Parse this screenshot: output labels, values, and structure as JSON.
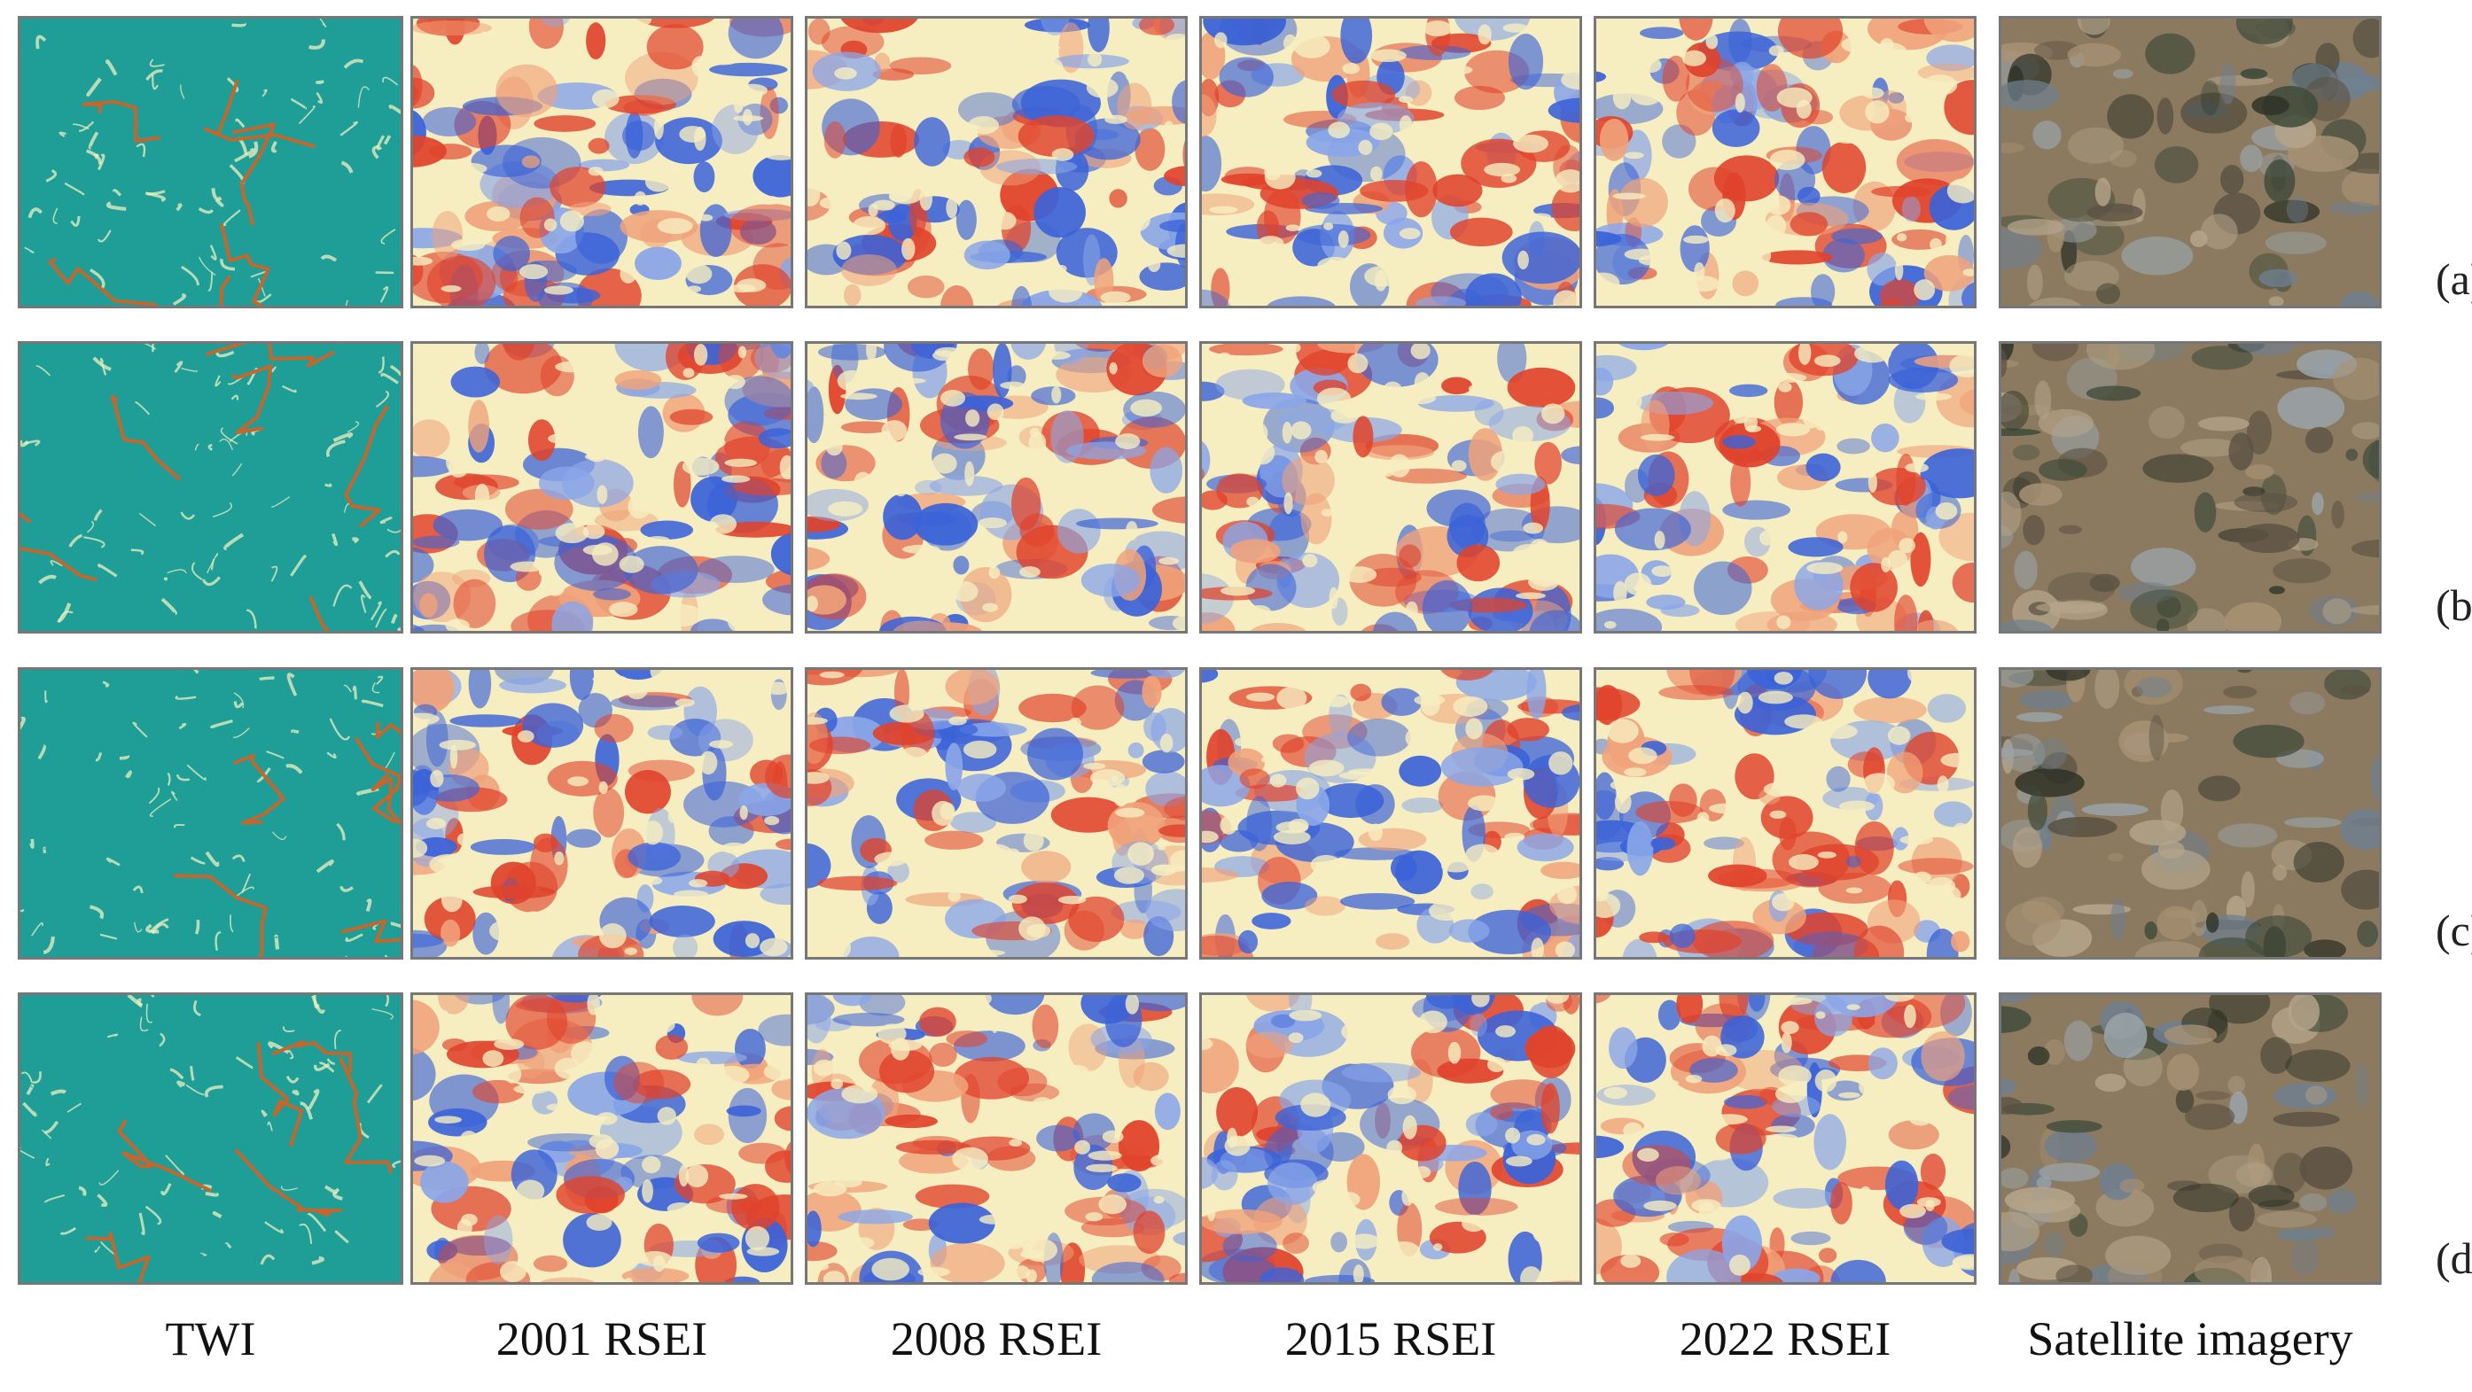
{
  "figure": {
    "column_labels": [
      "TWI",
      "2001 RSEI",
      "2008 RSEI",
      "2015 RSEI",
      "2022 RSEI",
      "Satellite imagery"
    ],
    "row_labels": [
      "(a)",
      "(b)",
      "(c)",
      "(d)"
    ],
    "colors": {
      "twi_background": "#1f9e98",
      "twi_ridge": "#eef0c0",
      "twi_channel": "#c8652a",
      "rsei_low": "#3b63d8",
      "rsei_mid": "#f6eec0",
      "rsei_high": "#e0432c",
      "satellite_base": "#8b7a5f",
      "panel_border": "#777777"
    },
    "panel_types": [
      "twi-map",
      "rsei-map",
      "rsei-map",
      "rsei-map",
      "rsei-map",
      "satellite-image"
    ]
  }
}
